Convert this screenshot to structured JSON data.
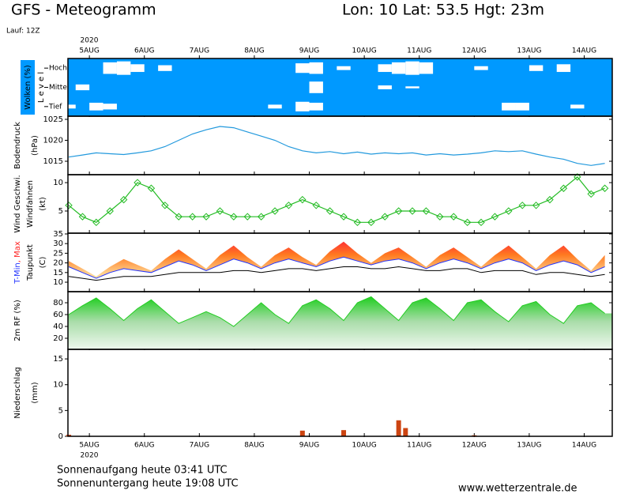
{
  "header": {
    "title": "GFS - Meteogramm",
    "location": "Lon: 10 Lat: 53.5 Hgt: 23m",
    "run": "Lauf: 12Z"
  },
  "time_axis": {
    "year": "2020",
    "xlim": [
      4.61,
      14.51
    ],
    "xticks": [
      {
        "value": 5,
        "label": "5AUG"
      },
      {
        "value": 6,
        "label": "6AUG"
      },
      {
        "value": 7,
        "label": "7AUG"
      },
      {
        "value": 8,
        "label": "8AUG"
      },
      {
        "value": 9,
        "label": "9AUG"
      },
      {
        "value": 10,
        "label": "10AUG"
      },
      {
        "value": 11,
        "label": "11AUG"
      },
      {
        "value": 12,
        "label": "12AUG"
      },
      {
        "value": 13,
        "label": "13AUG"
      },
      {
        "value": 14,
        "label": "14AUG"
      }
    ]
  },
  "chart_data": [
    {
      "type": "clouds",
      "ylabel": [
        {
          "text": "Wolken (%)",
          "color": "#ffffff"
        },
        {
          "text": "L e v e l",
          "color": "#000000"
        }
      ],
      "background": "#0099ff",
      "x": [
        4.625,
        4.875,
        5.125,
        5.375,
        5.625,
        5.875,
        6.125,
        6.375,
        6.625,
        6.875,
        7.125,
        7.375,
        7.625,
        7.875,
        8.125,
        8.375,
        8.625,
        8.875,
        9.125,
        9.375,
        9.625,
        9.875,
        10.125,
        10.375,
        10.625,
        10.875,
        11.125,
        11.375,
        11.625,
        11.875,
        12.125,
        12.375,
        12.625,
        12.875,
        13.125,
        13.375,
        13.625,
        13.875,
        14.125,
        14.375
      ],
      "series": [
        {
          "name": "Hoch",
          "values": [
            100,
            100,
            100,
            40,
            30,
            60,
            100,
            70,
            100,
            100,
            100,
            100,
            100,
            100,
            100,
            100,
            100,
            50,
            40,
            100,
            80,
            100,
            100,
            60,
            40,
            30,
            40,
            100,
            100,
            100,
            80,
            100,
            100,
            100,
            70,
            100,
            60,
            100,
            100,
            100
          ]
        },
        {
          "name": "Mittel",
          "values": [
            100,
            70,
            100,
            100,
            100,
            100,
            100,
            100,
            100,
            100,
            100,
            100,
            100,
            100,
            100,
            100,
            100,
            100,
            40,
            100,
            100,
            100,
            100,
            80,
            100,
            90,
            100,
            100,
            100,
            100,
            100,
            100,
            100,
            100,
            100,
            100,
            100,
            100,
            100,
            100
          ]
        },
        {
          "name": "Tief",
          "values": [
            80,
            100,
            60,
            70,
            100,
            100,
            100,
            100,
            100,
            100,
            100,
            100,
            100,
            100,
            100,
            80,
            100,
            50,
            60,
            100,
            100,
            100,
            100,
            100,
            100,
            100,
            100,
            100,
            100,
            100,
            100,
            100,
            60,
            60,
            100,
            100,
            100,
            80,
            100,
            100
          ]
        }
      ]
    },
    {
      "type": "line",
      "ylabel": [
        {
          "text": "Bodendruck",
          "color": "#000000"
        },
        {
          "text": "(hPa)",
          "color": "#000000"
        }
      ],
      "ylim": [
        1011.8,
        1025.75
      ],
      "yticks": [
        1015,
        1020,
        1025
      ],
      "color": "#2299dd",
      "x": [
        4.625,
        4.875,
        5.125,
        5.375,
        5.625,
        5.875,
        6.125,
        6.375,
        6.625,
        6.875,
        7.125,
        7.375,
        7.625,
        7.875,
        8.125,
        8.375,
        8.625,
        8.875,
        9.125,
        9.375,
        9.625,
        9.875,
        10.125,
        10.375,
        10.625,
        10.875,
        11.125,
        11.375,
        11.625,
        11.875,
        12.125,
        12.375,
        12.625,
        12.875,
        13.125,
        13.375,
        13.625,
        13.875,
        14.125,
        14.375
      ],
      "values": [
        1016,
        1016.5,
        1017,
        1016.8,
        1016.6,
        1017,
        1017.5,
        1018.5,
        1020,
        1021.5,
        1022.5,
        1023.3,
        1023,
        1022,
        1021,
        1020,
        1018.5,
        1017.5,
        1017,
        1017.3,
        1016.8,
        1017.2,
        1016.7,
        1017,
        1016.8,
        1017,
        1016.5,
        1016.8,
        1016.5,
        1016.7,
        1017,
        1017.5,
        1017.3,
        1017.5,
        1016.7,
        1016,
        1015.5,
        1014.5,
        1014,
        1014.5
      ]
    },
    {
      "type": "line",
      "ylabel": [
        {
          "text": "Wind Geschwi.",
          "color": "#11bb11"
        },
        {
          "text": "Windfahnen",
          "color": "#000000"
        },
        {
          "text": "(kt)",
          "color": "#000000"
        }
      ],
      "ylim": [
        1.1,
        11.4
      ],
      "yticks": [
        5,
        10
      ],
      "color": "#22bb22",
      "markers": true,
      "x": [
        4.625,
        4.875,
        5.125,
        5.375,
        5.625,
        5.875,
        6.125,
        6.375,
        6.625,
        6.875,
        7.125,
        7.375,
        7.625,
        7.875,
        8.125,
        8.375,
        8.625,
        8.875,
        9.125,
        9.375,
        9.625,
        9.875,
        10.125,
        10.375,
        10.625,
        10.875,
        11.125,
        11.375,
        11.625,
        11.875,
        12.125,
        12.375,
        12.625,
        12.875,
        13.125,
        13.375,
        13.625,
        13.875,
        14.125,
        14.375
      ],
      "values": [
        6,
        4,
        3,
        5,
        7,
        10,
        9,
        6,
        4,
        4,
        4,
        5,
        4,
        4,
        4,
        5,
        6,
        7,
        6,
        5,
        4,
        3,
        3,
        4,
        5,
        5,
        5,
        4,
        4,
        3,
        3,
        4,
        5,
        6,
        6,
        7,
        9,
        11,
        8,
        9
      ]
    },
    {
      "type": "temperature",
      "ylabel": [
        {
          "parts": [
            "T-Min",
            ", Max"
          ],
          "colors": [
            "#2233ff",
            "#ff2222"
          ]
        },
        {
          "text": "Taupunkt",
          "color": "#000000"
        },
        {
          "text": "(C)",
          "color": "#000000"
        }
      ],
      "ylim": [
        5.1,
        35.4
      ],
      "yticks": [
        10,
        15,
        20,
        25,
        30,
        35
      ],
      "x": [
        4.625,
        4.875,
        5.125,
        5.375,
        5.625,
        5.875,
        6.125,
        6.375,
        6.625,
        6.875,
        7.125,
        7.375,
        7.625,
        7.875,
        8.125,
        8.375,
        8.625,
        8.875,
        9.125,
        9.375,
        9.625,
        9.875,
        10.125,
        10.375,
        10.625,
        10.875,
        11.125,
        11.375,
        11.625,
        11.875,
        12.125,
        12.375,
        12.625,
        12.875,
        13.125,
        13.375,
        13.625,
        13.875,
        14.125,
        14.375
      ],
      "series": [
        {
          "name": "Max",
          "color": "#ff2222",
          "values": [
            21,
            17,
            13,
            18,
            22,
            19,
            16,
            22,
            27,
            22,
            17,
            24,
            29,
            23,
            18,
            24,
            28,
            23,
            19,
            26,
            31,
            25,
            20,
            25,
            28,
            23,
            18,
            24,
            28,
            23,
            18,
            24,
            29,
            23,
            17,
            24,
            29,
            22,
            16,
            24
          ]
        },
        {
          "name": "T-Min",
          "color": "#2233ff",
          "values": [
            18,
            15,
            12,
            15,
            17,
            16,
            15,
            18,
            21,
            19,
            16,
            19,
            22,
            20,
            17,
            20,
            22,
            20,
            18,
            21,
            23,
            21,
            19,
            21,
            22,
            20,
            17,
            20,
            22,
            20,
            17,
            20,
            22,
            20,
            16,
            19,
            21,
            19,
            15,
            18
          ]
        },
        {
          "name": "Taupunkt",
          "color": "#000000",
          "values": [
            13,
            12,
            11,
            12,
            13,
            13,
            13,
            14,
            15,
            15,
            15,
            15,
            16,
            16,
            15,
            16,
            17,
            17,
            16,
            17,
            18,
            18,
            17,
            17,
            18,
            17,
            16,
            16,
            17,
            17,
            15,
            16,
            16,
            16,
            14,
            15,
            15,
            14,
            13,
            14
          ]
        }
      ]
    },
    {
      "type": "area",
      "ylabel": [
        {
          "text": "2m RF (%)",
          "color": "#11bb11"
        }
      ],
      "ylim": [
        1.3,
        98.7
      ],
      "yticks": [
        20,
        40,
        60,
        80
      ],
      "color": "#22cc22",
      "x": [
        4.625,
        4.875,
        5.125,
        5.375,
        5.625,
        5.875,
        6.125,
        6.375,
        6.625,
        6.875,
        7.125,
        7.375,
        7.625,
        7.875,
        8.125,
        8.375,
        8.625,
        8.875,
        9.125,
        9.375,
        9.625,
        9.875,
        10.125,
        10.375,
        10.625,
        10.875,
        11.125,
        11.375,
        11.625,
        11.875,
        12.125,
        12.375,
        12.625,
        12.875,
        13.125,
        13.375,
        13.625,
        13.875,
        14.125,
        14.375
      ],
      "values": [
        60,
        75,
        88,
        70,
        50,
        70,
        85,
        65,
        45,
        55,
        65,
        55,
        40,
        60,
        80,
        60,
        45,
        75,
        85,
        70,
        50,
        80,
        90,
        70,
        50,
        80,
        88,
        70,
        50,
        80,
        85,
        65,
        48,
        75,
        82,
        60,
        45,
        75,
        80,
        62
      ]
    },
    {
      "type": "bar",
      "ylabel": [
        {
          "text": "Niederschlag",
          "color": "#000000"
        },
        {
          "text": "(mm)",
          "color": "#000000"
        }
      ],
      "ylim": [
        0,
        16.85
      ],
      "yticks": [
        0,
        5,
        10,
        15
      ],
      "color": "#cc4411",
      "x": [
        4.625,
        8.875,
        9.625,
        10.625,
        10.75,
        12.0
      ],
      "values": [
        0.3,
        1.1,
        1.2,
        3.1,
        1.6,
        0.2
      ]
    }
  ],
  "footer": {
    "sunrise": "Sonnenaufgang heute 03:41 UTC",
    "sunset": "Sonnenuntergang heute 19:08 UTC",
    "source": "www.wetterzentrale.de"
  }
}
